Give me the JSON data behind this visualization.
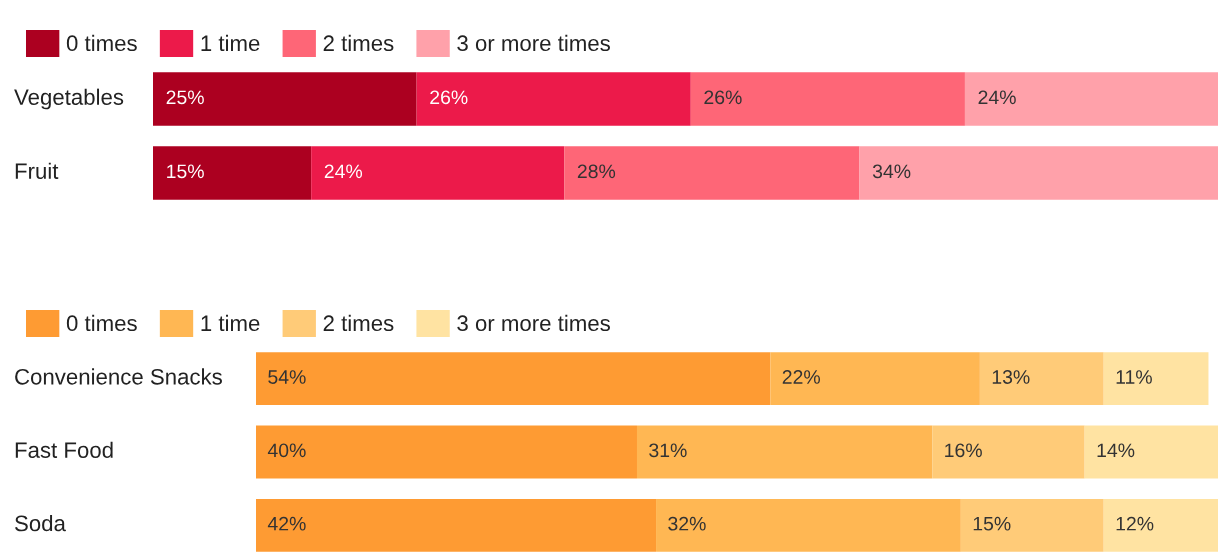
{
  "chart_data": [
    {
      "type": "bar",
      "orientation": "horizontal",
      "stacked": true,
      "legend": "top left",
      "categories": [
        "Vegetables",
        "Fruit"
      ],
      "series": [
        {
          "name": "0 times",
          "color": "#ac0020",
          "values": [
            25,
            15
          ],
          "value_labels": [
            "25%",
            "15%"
          ]
        },
        {
          "name": "1 time",
          "color": "#ec1a4a",
          "values": [
            26,
            24
          ],
          "value_labels": [
            "26%",
            "24%"
          ]
        },
        {
          "name": "2 times",
          "color": "#fe6677",
          "values": [
            26,
            28
          ],
          "value_labels": [
            "26%",
            "28%"
          ]
        },
        {
          "name": "3 or more times",
          "color": "#ffa1aa",
          "values": [
            24,
            34
          ],
          "value_labels": [
            "24%",
            "34%"
          ]
        }
      ]
    },
    {
      "type": "bar",
      "orientation": "horizontal",
      "stacked": true,
      "legend": "top left",
      "categories": [
        "Convenience Snacks",
        "Fast Food",
        "Soda"
      ],
      "series": [
        {
          "name": "0 times",
          "color": "#fe9b33",
          "values": [
            54,
            40,
            42
          ],
          "value_labels": [
            "54%",
            "40%",
            "42%"
          ]
        },
        {
          "name": "1 time",
          "color": "#ffb753",
          "values": [
            22,
            31,
            32
          ],
          "value_labels": [
            "22%",
            "31%",
            "32%"
          ]
        },
        {
          "name": "2 times",
          "color": "#ffcb78",
          "values": [
            13,
            16,
            15
          ],
          "value_labels": [
            "13%",
            "16%",
            "15%"
          ]
        },
        {
          "name": "3 or more times",
          "color": "#ffe3a2",
          "values": [
            11,
            14,
            12
          ],
          "value_labels": [
            "11%",
            "14%",
            "12%"
          ]
        }
      ]
    }
  ]
}
